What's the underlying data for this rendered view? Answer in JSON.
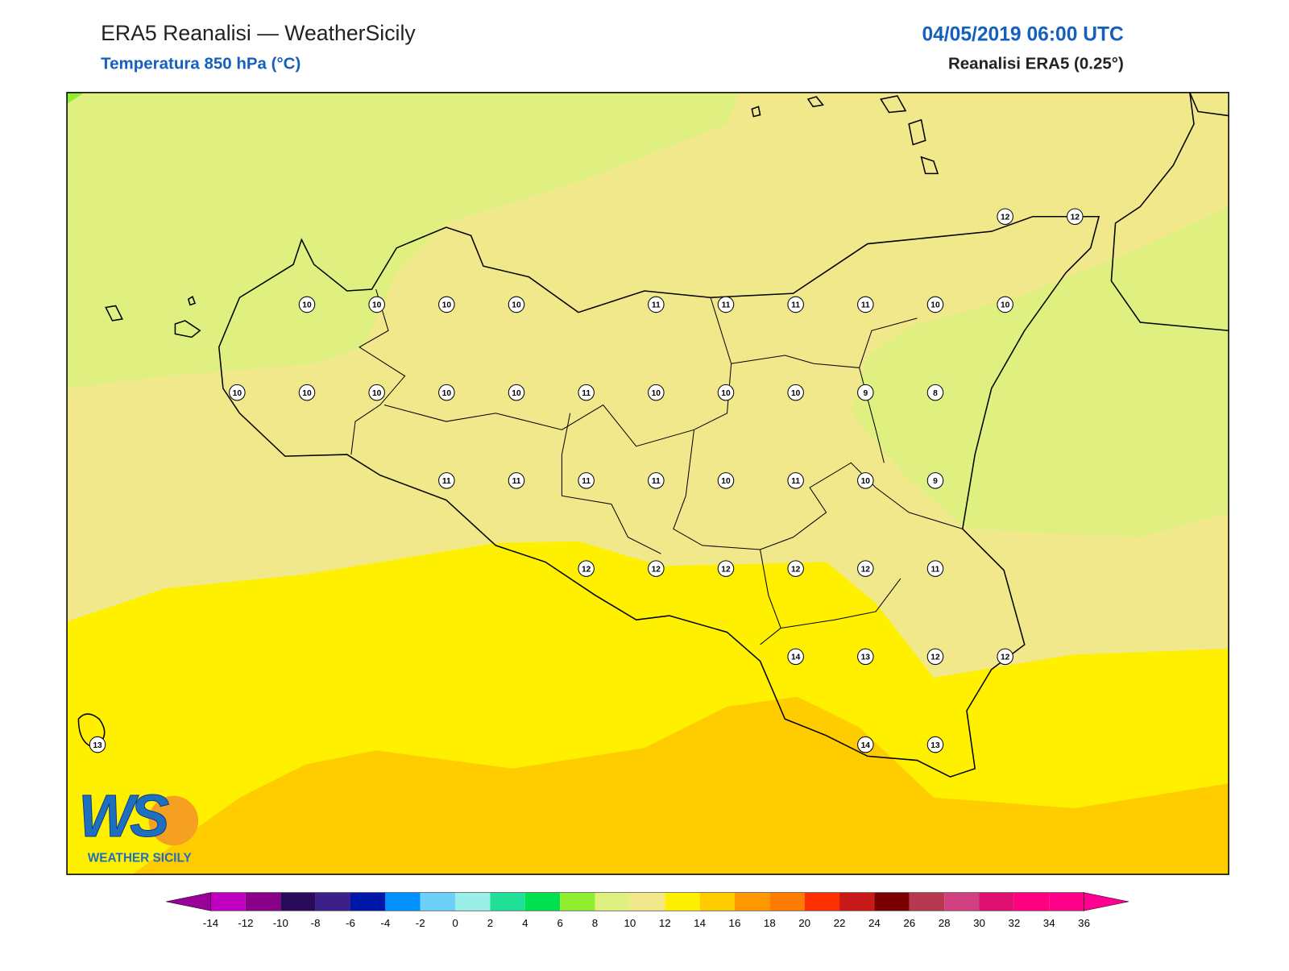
{
  "header": {
    "title": "ERA5 Reanalisi — WeatherSicily",
    "subtitle": "Temperatura 850 hPa (°C)",
    "datetime": "04/05/2019 06:00 UTC",
    "source": "Reanalisi ERA5 (0.25°)"
  },
  "station_grid": [
    [
      null,
      null,
      null,
      null,
      null,
      null,
      null,
      null,
      null,
      null,
      null,
      null,
      null,
      12,
      12
    ],
    [
      null,
      null,
      null,
      10,
      10,
      10,
      10,
      null,
      11,
      11,
      11,
      11,
      10,
      10,
      null
    ],
    [
      null,
      null,
      10,
      10,
      10,
      10,
      10,
      11,
      10,
      10,
      10,
      9,
      8,
      null,
      null
    ],
    [
      null,
      null,
      null,
      null,
      null,
      11,
      11,
      11,
      11,
      10,
      11,
      10,
      9,
      null,
      null
    ],
    [
      null,
      null,
      null,
      null,
      null,
      null,
      null,
      12,
      12,
      12,
      12,
      12,
      11,
      null,
      null
    ],
    [
      null,
      null,
      null,
      null,
      null,
      null,
      null,
      null,
      null,
      null,
      14,
      13,
      12,
      12,
      null
    ],
    [
      13,
      null,
      null,
      null,
      null,
      null,
      null,
      null,
      null,
      null,
      null,
      14,
      13,
      null,
      null
    ]
  ],
  "colorbar": {
    "ticks": [
      -14,
      -12,
      -10,
      -8,
      -6,
      -4,
      -2,
      0,
      2,
      4,
      6,
      8,
      10,
      12,
      14,
      16,
      18,
      20,
      22,
      24,
      26,
      28,
      30,
      32,
      34,
      36
    ],
    "colors": [
      "#9a009a",
      "#c000c0",
      "#880088",
      "#2a0a5a",
      "#3a2088",
      "#0018a8",
      "#0090ff",
      "#6cd0f8",
      "#98f0e8",
      "#20e098",
      "#00e050",
      "#90ee30",
      "#e0f080",
      "#f0e88a",
      "#fff000",
      "#ffcc00",
      "#ff9800",
      "#ff7c00",
      "#ff3000",
      "#c81818",
      "#780000",
      "#b83850",
      "#d04080",
      "#e01070",
      "#ff0080",
      "#ff0088",
      "#ff0090"
    ]
  },
  "logo": {
    "mark": "WS",
    "text": "WEATHER SICILY"
  }
}
